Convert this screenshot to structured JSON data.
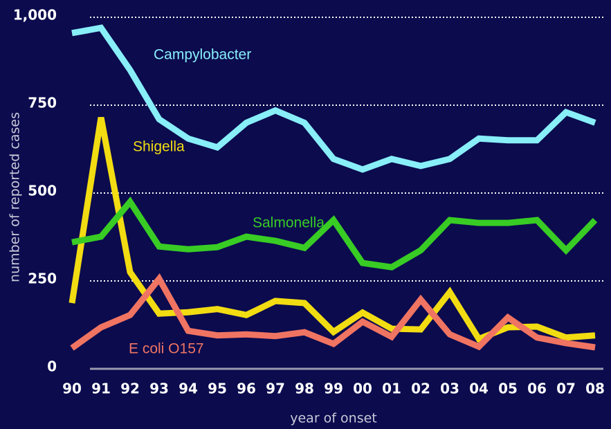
{
  "chart_data": {
    "type": "line",
    "y_label": "number of reported cases",
    "x_label": "year of onset",
    "categories": [
      "90",
      "91",
      "92",
      "93",
      "94",
      "95",
      "96",
      "97",
      "98",
      "99",
      "00",
      "01",
      "02",
      "03",
      "04",
      "05",
      "06",
      "07",
      "08"
    ],
    "ylim": [
      0,
      1000
    ],
    "yticks": [
      0,
      250,
      500,
      750,
      {
        "value": 1000,
        "label": "1,000"
      }
    ],
    "grid": true,
    "series": [
      {
        "name": "Campylobacter",
        "color": "#88eef8",
        "values": [
          955,
          970,
          850,
          710,
          655,
          630,
          700,
          735,
          700,
          597,
          567,
          597,
          577,
          597,
          655,
          650,
          650,
          730,
          700
        ]
      },
      {
        "name": "Shigella",
        "color": "#f2dc12",
        "values": [
          187,
          715,
          275,
          157,
          161,
          170,
          153,
          193,
          187,
          105,
          160,
          114,
          112,
          218,
          85,
          118,
          120,
          89,
          95
        ]
      },
      {
        "name": "Salmonella",
        "color": "#38cc24",
        "values": [
          360,
          376,
          475,
          348,
          340,
          346,
          376,
          364,
          344,
          423,
          301,
          289,
          337,
          423,
          415,
          415,
          423,
          337,
          423
        ]
      },
      {
        "name": "E coli O157",
        "color": "#f07462",
        "values": [
          59,
          118,
          153,
          256,
          108,
          95,
          98,
          93,
          104,
          71,
          134,
          91,
          197,
          98,
          63,
          146,
          89,
          73,
          61
        ]
      }
    ]
  }
}
